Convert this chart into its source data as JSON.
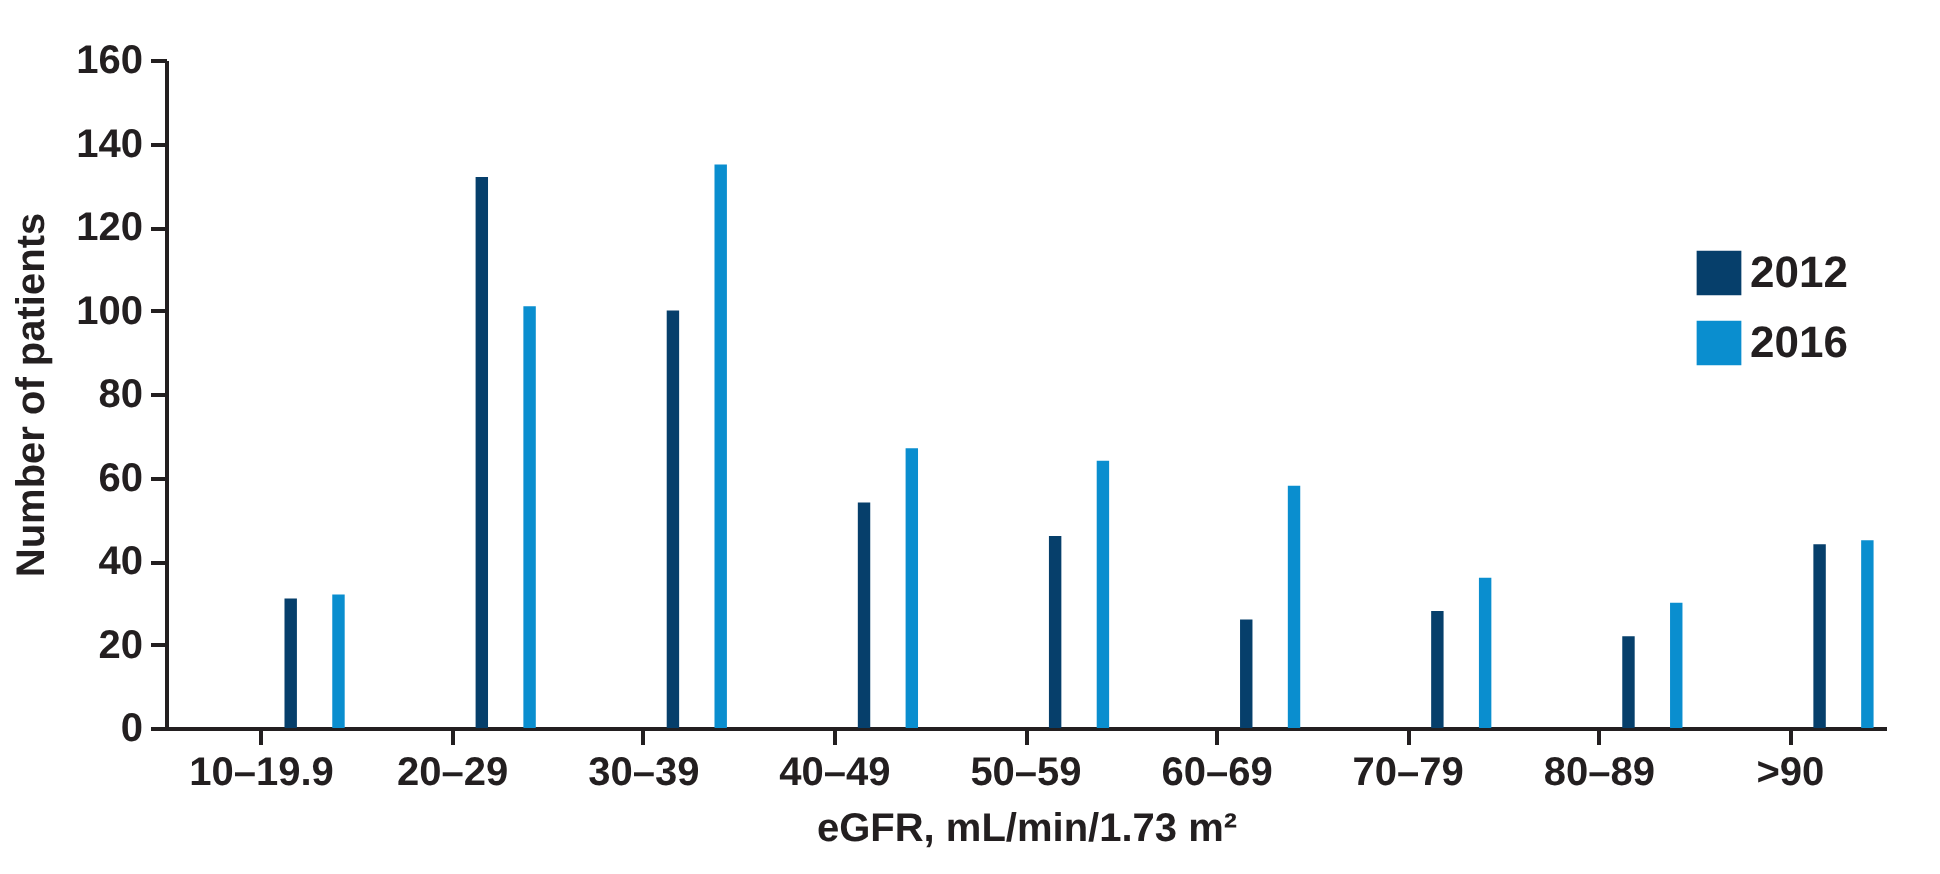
{
  "chart_data": {
    "type": "bar",
    "xlabel": "eGFR, mL/min/1.73 m²",
    "ylabel": "Number of patients",
    "categories": [
      "10–19.9",
      "20–29",
      "30–39",
      "40–49",
      "50–59",
      "60–69",
      "70–79",
      "80–89",
      ">90"
    ],
    "series": [
      {
        "name": "2012",
        "color": "#063f6b",
        "values": [
          31,
          132,
          100,
          54,
          46,
          26,
          28,
          22,
          44
        ]
      },
      {
        "name": "2016",
        "color": "#0a8ecf",
        "values": [
          32,
          101,
          135,
          67,
          64,
          58,
          36,
          30,
          45
        ]
      }
    ],
    "ylim": [
      0,
      160
    ],
    "yticks": [
      0,
      20,
      40,
      60,
      80,
      100,
      120,
      140,
      160
    ],
    "grid": false,
    "legend": "right"
  }
}
